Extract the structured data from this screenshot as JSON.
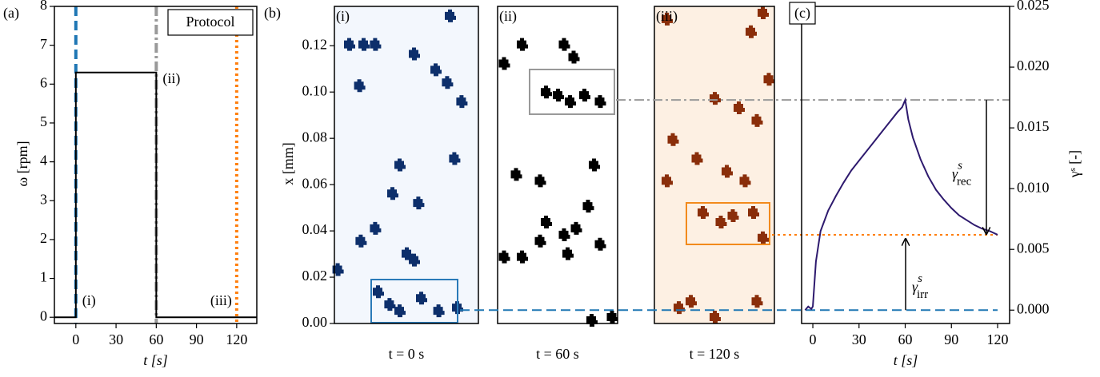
{
  "chart_data": [
    {
      "type": "line",
      "panel_label": "(a)",
      "xlabel": "t [s]",
      "ylabel": "ω [rpm]",
      "x": [
        -16,
        0,
        0,
        60,
        60,
        135
      ],
      "series": [
        {
          "name": "Protocol",
          "color": "#000000",
          "values": [
            0,
            0,
            6.3,
            6.3,
            0,
            0
          ]
        }
      ],
      "legend": "upper right",
      "xlim": [
        -16,
        135
      ],
      "ylim": [
        -0.16,
        8
      ],
      "xticks": [
        0,
        30,
        60,
        90,
        120
      ],
      "yticks": [
        0,
        1,
        2,
        3,
        4,
        5,
        6,
        7,
        8
      ],
      "vlines": [
        {
          "x": 0,
          "color": "#1f77b4",
          "style": "dashed",
          "label": "(i)"
        },
        {
          "x": 60,
          "color": "#999999",
          "style": "dashdot",
          "label": "(ii)"
        },
        {
          "x": 120,
          "color": "#ff7f0e",
          "style": "dotted",
          "label": "(iii)"
        }
      ]
    },
    {
      "type": "image-panels",
      "panel_label": "(b)",
      "ylabel": "x [mm]",
      "ylim": [
        0,
        0.137
      ],
      "yticks": [
        {
          "value": 0,
          "label": "0.00"
        },
        0.02,
        0.04,
        0.06,
        0.08,
        {
          "value": 0.1,
          "label": "0.10"
        },
        0.12
      ],
      "panels": [
        {
          "label": "(i)",
          "caption": "t = 0 s",
          "color": "#0d2f6b",
          "background": "#f3f7fd",
          "highlight": "#2a7ab8"
        },
        {
          "label": "(ii)",
          "caption": "t = 60 s",
          "color": "#000000",
          "background": "#ffffff",
          "highlight": "#999999"
        },
        {
          "label": "(iii)",
          "caption": "t = 120 s",
          "color": "#8a2e0a",
          "background": "#fdf0e3",
          "highlight": "#f28a1c"
        }
      ]
    },
    {
      "type": "line",
      "panel_label": "(c)",
      "xlabel": "t [s]",
      "ylabel": "γˢ [-]",
      "x": [
        -5,
        -3,
        -1,
        0,
        2,
        5,
        10,
        15,
        20,
        25,
        30,
        35,
        40,
        45,
        50,
        55,
        58,
        60,
        62,
        65,
        70,
        75,
        80,
        85,
        90,
        95,
        100,
        105,
        110,
        115,
        120
      ],
      "series": [
        {
          "color": "#2e1a6e",
          "values": [
            0,
            0.0003,
            0.0001,
            0.0003,
            0.004,
            0.0065,
            0.0082,
            0.0094,
            0.0105,
            0.0115,
            0.0123,
            0.0131,
            0.0139,
            0.0147,
            0.0155,
            0.0163,
            0.0167,
            0.0173,
            0.0157,
            0.0142,
            0.0124,
            0.011,
            0.0099,
            0.0091,
            0.0084,
            0.0078,
            0.0074,
            0.007,
            0.0067,
            0.0065,
            0.0062
          ]
        }
      ],
      "xlim": [
        -7.3,
        127.8
      ],
      "ylim": [
        -0.0011,
        0.025
      ],
      "xticks": [
        0,
        30,
        60,
        90,
        120
      ],
      "yticks": [
        {
          "value": 0,
          "label": "0.000"
        },
        {
          "value": 0.005,
          "label": "0.005"
        },
        {
          "value": 0.01,
          "label": "0.010"
        },
        {
          "value": 0.015,
          "label": "0.015"
        },
        {
          "value": 0.02,
          "label": "0.020"
        },
        {
          "value": 0.025,
          "label": "0.025"
        }
      ],
      "hlines": [
        {
          "y": 0.0173,
          "color": "#999999",
          "style": "dashdot"
        },
        {
          "y": 0.0062,
          "color": "#ff7f0e",
          "style": "dotted"
        },
        {
          "y": 0,
          "color": "#1f77b4",
          "style": "dashed"
        }
      ],
      "annotations": [
        {
          "symbol": "γ",
          "sup": "s",
          "sub": "rec"
        },
        {
          "symbol": "γ",
          "sup": "s",
          "sub": "irr"
        }
      ]
    }
  ]
}
